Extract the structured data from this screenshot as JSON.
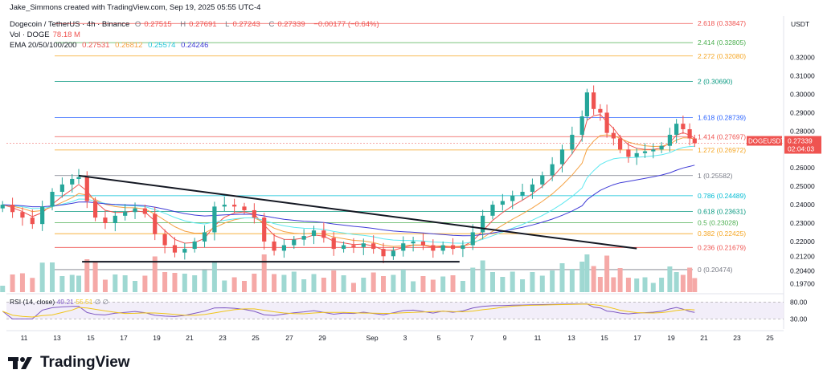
{
  "credit": "Jake_Simmons created with TradingView.com, Sep 19, 2025 05:55 UTC-4",
  "legend": {
    "symbol": "Dogecoin / TetherUS · 4h · Binance",
    "o_label": "O",
    "o": "0.27515",
    "h_label": "H",
    "h": "0.27691",
    "l_label": "L",
    "l": "0.27243",
    "c_label": "C",
    "c": "0.27339",
    "change": "−0.00177 (−0.64%)",
    "vol_label": "Vol · DOGE",
    "vol": "78.18 M",
    "ema_label": "EMA 20/50/100/200",
    "ema20": "0.27531",
    "ema50": "0.26812",
    "ema100": "0.25574",
    "ema200": "0.24246"
  },
  "brand": "TradingView",
  "colors": {
    "up": "#26a69a",
    "down": "#ef5350",
    "ema20": "#ef5350",
    "ema50": "#f5a142",
    "ema100": "#5ee8f0",
    "ema200": "#3f3bd6",
    "rsi": "#7e57c2",
    "rsi_ma": "#f0c419"
  },
  "chart_data": {
    "type": "candlestick",
    "currency": "USDT",
    "y_range": [
      0.1925,
      0.3425
    ],
    "price_ticks": [
      "0.32000",
      "0.31000",
      "0.30000",
      "0.29000",
      "0.28000",
      "0.26000",
      "0.25000",
      "0.24000",
      "0.23000",
      "0.22000",
      "0.21200",
      "0.20400",
      "0.19700"
    ],
    "x_ticks": [
      "11",
      "13",
      "15",
      "17",
      "19",
      "21",
      "23",
      "25",
      "27",
      "29",
      "Sep",
      "3",
      "5",
      "7",
      "9",
      "11",
      "13",
      "15",
      "17",
      "19",
      "21",
      "23",
      "25"
    ],
    "current": {
      "label": "DOGEUSDT",
      "price": "0.27339",
      "countdown": "02:04:03"
    },
    "fib_levels": [
      {
        "ratio": "2.618",
        "price": 0.33847,
        "label": "2.618 (0.33847)",
        "color": "#ef5350"
      },
      {
        "ratio": "2.414",
        "price": 0.32805,
        "label": "2.414 (0.32805)",
        "color": "#4caf50"
      },
      {
        "ratio": "2.272",
        "price": 0.3208,
        "label": "2.272 (0.32080)",
        "color": "#f5a623"
      },
      {
        "ratio": "2",
        "price": 0.3069,
        "label": "2 (0.30690)",
        "color": "#089981"
      },
      {
        "ratio": "1.618",
        "price": 0.28739,
        "label": "1.618 (0.28739)",
        "color": "#2962ff"
      },
      {
        "ratio": "1.414",
        "price": 0.27697,
        "label": "1.414 (0.27697)",
        "color": "#ef5350"
      },
      {
        "ratio": "1.272",
        "price": 0.26972,
        "label": "1.272 (0.26972)",
        "color": "#f5a623"
      },
      {
        "ratio": "1",
        "price": 0.25582,
        "label": "1 (0.25582)",
        "color": "#787b86"
      },
      {
        "ratio": "0.786",
        "price": 0.24489,
        "label": "0.786 (0.24489)",
        "color": "#00bcd4"
      },
      {
        "ratio": "0.618",
        "price": 0.23631,
        "label": "0.618 (0.23631)",
        "color": "#089981"
      },
      {
        "ratio": "0.5",
        "price": 0.23028,
        "label": "0.5 (0.23028)",
        "color": "#4caf50"
      },
      {
        "ratio": "0.382",
        "price": 0.22425,
        "label": "0.382 (0.22425)",
        "color": "#f5a623"
      },
      {
        "ratio": "0.236",
        "price": 0.21679,
        "label": "0.236 (0.21679)",
        "color": "#ef5350"
      },
      {
        "ratio": "0",
        "price": 0.20474,
        "label": "0 (0.20474)",
        "color": "#787b86"
      }
    ],
    "trendlines": [
      {
        "name": "descending-resistance",
        "from": {
          "day": 14.3,
          "price": 0.2558
        },
        "to": {
          "day": 48.0,
          "price": 0.2162
        }
      },
      {
        "name": "horizontal-support",
        "from": {
          "day": 14.5,
          "price": 0.209
        },
        "to": {
          "day": 37.3,
          "price": 0.209
        }
      }
    ],
    "close_series": [
      {
        "day": 9.7,
        "close": 0.24
      },
      {
        "day": 10.3,
        "close": 0.236
      },
      {
        "day": 10.9,
        "close": 0.233
      },
      {
        "day": 11.5,
        "close": 0.2295
      },
      {
        "day": 12.1,
        "close": 0.239
      },
      {
        "day": 12.7,
        "close": 0.247
      },
      {
        "day": 13.3,
        "close": 0.251
      },
      {
        "day": 13.9,
        "close": 0.254
      },
      {
        "day": 14.3,
        "close": 0.255
      },
      {
        "day": 14.8,
        "close": 0.242
      },
      {
        "day": 15.3,
        "close": 0.233
      },
      {
        "day": 15.9,
        "close": 0.23
      },
      {
        "day": 16.5,
        "close": 0.234
      },
      {
        "day": 17.1,
        "close": 0.236
      },
      {
        "day": 17.7,
        "close": 0.238
      },
      {
        "day": 18.3,
        "close": 0.235
      },
      {
        "day": 18.9,
        "close": 0.224
      },
      {
        "day": 19.5,
        "close": 0.218
      },
      {
        "day": 20.1,
        "close": 0.214
      },
      {
        "day": 20.7,
        "close": 0.216
      },
      {
        "day": 21.3,
        "close": 0.22
      },
      {
        "day": 21.9,
        "close": 0.225
      },
      {
        "day": 22.5,
        "close": 0.239
      },
      {
        "day": 23.1,
        "close": 0.24
      },
      {
        "day": 23.7,
        "close": 0.239
      },
      {
        "day": 24.3,
        "close": 0.237
      },
      {
        "day": 24.9,
        "close": 0.233
      },
      {
        "day": 25.5,
        "close": 0.22
      },
      {
        "day": 26.1,
        "close": 0.215
      },
      {
        "day": 26.7,
        "close": 0.218
      },
      {
        "day": 27.3,
        "close": 0.221
      },
      {
        "day": 27.9,
        "close": 0.223
      },
      {
        "day": 28.5,
        "close": 0.226
      },
      {
        "day": 29.1,
        "close": 0.222
      },
      {
        "day": 29.7,
        "close": 0.216
      },
      {
        "day": 30.3,
        "close": 0.218
      },
      {
        "day": 30.9,
        "close": 0.217
      },
      {
        "day": 31.5,
        "close": 0.219
      },
      {
        "day": 32.1,
        "close": 0.216
      },
      {
        "day": 32.7,
        "close": 0.212
      },
      {
        "day": 33.3,
        "close": 0.215
      },
      {
        "day": 33.9,
        "close": 0.219
      },
      {
        "day": 34.5,
        "close": 0.22
      },
      {
        "day": 35.1,
        "close": 0.218
      },
      {
        "day": 35.7,
        "close": 0.215
      },
      {
        "day": 36.3,
        "close": 0.218
      },
      {
        "day": 36.9,
        "close": 0.216
      },
      {
        "day": 37.5,
        "close": 0.218
      },
      {
        "day": 38.1,
        "close": 0.225
      },
      {
        "day": 38.7,
        "close": 0.234
      },
      {
        "day": 39.3,
        "close": 0.24
      },
      {
        "day": 39.9,
        "close": 0.242
      },
      {
        "day": 40.5,
        "close": 0.245
      },
      {
        "day": 41.1,
        "close": 0.247
      },
      {
        "day": 41.7,
        "close": 0.251
      },
      {
        "day": 42.3,
        "close": 0.256
      },
      {
        "day": 42.9,
        "close": 0.262
      },
      {
        "day": 43.5,
        "close": 0.27
      },
      {
        "day": 44.1,
        "close": 0.278
      },
      {
        "day": 44.7,
        "close": 0.288
      },
      {
        "day": 45.0,
        "close": 0.301
      },
      {
        "day": 45.4,
        "close": 0.292
      },
      {
        "day": 45.8,
        "close": 0.29
      },
      {
        "day": 46.2,
        "close": 0.279
      },
      {
        "day": 46.6,
        "close": 0.276
      },
      {
        "day": 47.0,
        "close": 0.27
      },
      {
        "day": 47.5,
        "close": 0.266
      },
      {
        "day": 48.0,
        "close": 0.268
      },
      {
        "day": 48.5,
        "close": 0.269
      },
      {
        "day": 49.0,
        "close": 0.27
      },
      {
        "day": 49.5,
        "close": 0.272
      },
      {
        "day": 50.0,
        "close": 0.278
      },
      {
        "day": 50.4,
        "close": 0.284
      },
      {
        "day": 50.8,
        "close": 0.281
      },
      {
        "day": 51.2,
        "close": 0.276
      },
      {
        "day": 51.5,
        "close": 0.2734
      }
    ],
    "rsi": {
      "label": "RSI (14, close)",
      "value": "49.21",
      "ma": "55.51",
      "extra": "∅",
      "extra2": "∅",
      "levels": [
        "80.00",
        "30.00"
      ]
    }
  }
}
